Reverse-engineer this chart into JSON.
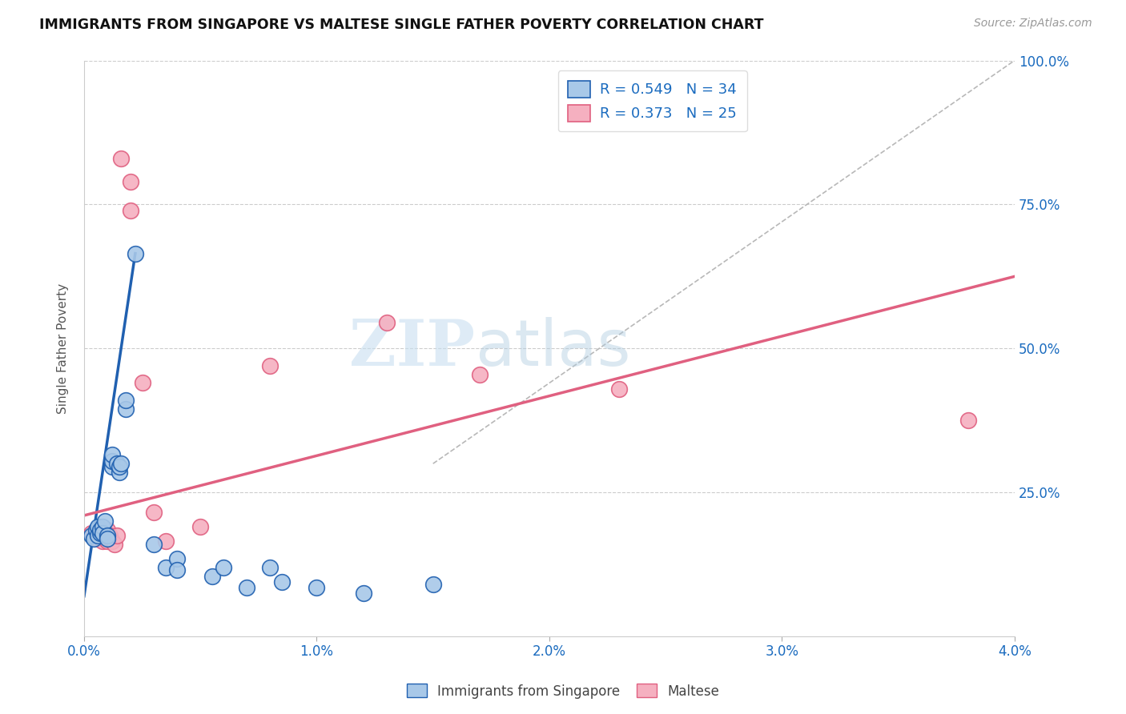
{
  "title": "IMMIGRANTS FROM SINGAPORE VS MALTESE SINGLE FATHER POVERTY CORRELATION CHART",
  "source": "Source: ZipAtlas.com",
  "ylabel": "Single Father Poverty",
  "yticks": [
    "",
    "25.0%",
    "50.0%",
    "75.0%",
    "100.0%"
  ],
  "ytick_vals": [
    0.0,
    0.25,
    0.5,
    0.75,
    1.0
  ],
  "xlim": [
    0.0,
    0.04
  ],
  "ylim": [
    0.0,
    1.0
  ],
  "legend_label1": "R = 0.549   N = 34",
  "legend_label2": "R = 0.373   N = 25",
  "color_blue": "#a8c8e8",
  "color_pink": "#f5b0c0",
  "line_color_blue": "#2060b0",
  "line_color_pink": "#e06080",
  "line_color_diag": "#b8b8b8",
  "watermark_zip": "ZIP",
  "watermark_atlas": "atlas",
  "blue_points": [
    [
      0.0003,
      0.175
    ],
    [
      0.0004,
      0.17
    ],
    [
      0.0005,
      0.185
    ],
    [
      0.0006,
      0.19
    ],
    [
      0.0006,
      0.175
    ],
    [
      0.0007,
      0.18
    ],
    [
      0.0007,
      0.185
    ],
    [
      0.0008,
      0.19
    ],
    [
      0.0008,
      0.18
    ],
    [
      0.0009,
      0.2
    ],
    [
      0.001,
      0.175
    ],
    [
      0.001,
      0.17
    ],
    [
      0.0012,
      0.295
    ],
    [
      0.0012,
      0.305
    ],
    [
      0.0012,
      0.315
    ],
    [
      0.0014,
      0.3
    ],
    [
      0.0015,
      0.285
    ],
    [
      0.0015,
      0.295
    ],
    [
      0.0016,
      0.3
    ],
    [
      0.0018,
      0.395
    ],
    [
      0.0018,
      0.41
    ],
    [
      0.0022,
      0.665
    ],
    [
      0.003,
      0.16
    ],
    [
      0.0035,
      0.12
    ],
    [
      0.004,
      0.135
    ],
    [
      0.004,
      0.115
    ],
    [
      0.0055,
      0.105
    ],
    [
      0.006,
      0.12
    ],
    [
      0.007,
      0.085
    ],
    [
      0.008,
      0.12
    ],
    [
      0.0085,
      0.095
    ],
    [
      0.01,
      0.085
    ],
    [
      0.012,
      0.075
    ],
    [
      0.015,
      0.09
    ]
  ],
  "pink_points": [
    [
      0.0003,
      0.18
    ],
    [
      0.0004,
      0.175
    ],
    [
      0.0006,
      0.185
    ],
    [
      0.0006,
      0.17
    ],
    [
      0.0007,
      0.175
    ],
    [
      0.0008,
      0.165
    ],
    [
      0.0009,
      0.175
    ],
    [
      0.001,
      0.165
    ],
    [
      0.001,
      0.185
    ],
    [
      0.0011,
      0.175
    ],
    [
      0.0012,
      0.165
    ],
    [
      0.0013,
      0.16
    ],
    [
      0.0014,
      0.175
    ],
    [
      0.0016,
      0.83
    ],
    [
      0.002,
      0.74
    ],
    [
      0.002,
      0.79
    ],
    [
      0.0025,
      0.44
    ],
    [
      0.003,
      0.215
    ],
    [
      0.0035,
      0.165
    ],
    [
      0.005,
      0.19
    ],
    [
      0.008,
      0.47
    ],
    [
      0.013,
      0.545
    ],
    [
      0.017,
      0.455
    ],
    [
      0.023,
      0.43
    ],
    [
      0.038,
      0.375
    ]
  ],
  "blue_trendline_x": [
    0.0,
    0.0022
  ],
  "blue_trendline_y": [
    0.07,
    0.665
  ],
  "pink_trendline_x": [
    0.0,
    0.04
  ],
  "pink_trendline_y": [
    0.21,
    0.625
  ],
  "diag_line_x": [
    0.015,
    0.04
  ],
  "diag_line_y": [
    0.3,
    1.0
  ]
}
